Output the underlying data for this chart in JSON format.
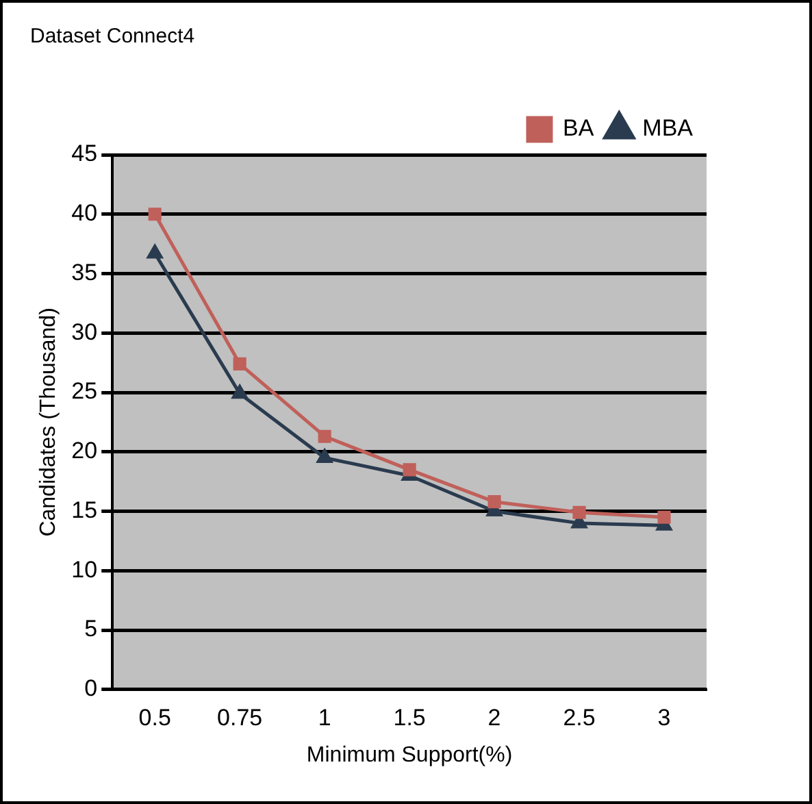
{
  "chart_data": {
    "type": "line",
    "title": "Dataset Connect4",
    "xlabel": "Minimum Support(%)",
    "ylabel": "Candidates (Thousand)",
    "categories": [
      "0.5",
      "0.75",
      "1",
      "1.5",
      "2",
      "2.5",
      "3"
    ],
    "series": [
      {
        "name": "BA",
        "color": "#c0605a",
        "marker": "square",
        "values": [
          40,
          27.4,
          21.3,
          18.5,
          15.8,
          14.9,
          14.5
        ]
      },
      {
        "name": "MBA",
        "color": "#2a3b4f",
        "marker": "triangle",
        "values": [
          36.7,
          24.9,
          19.5,
          18,
          15,
          14,
          13.8
        ]
      }
    ],
    "ylim": [
      0,
      45
    ],
    "yticks": [
      0,
      5,
      10,
      15,
      20,
      25,
      30,
      35,
      40,
      45
    ],
    "grid": "y",
    "legend": "top right",
    "line_style": "solid"
  }
}
